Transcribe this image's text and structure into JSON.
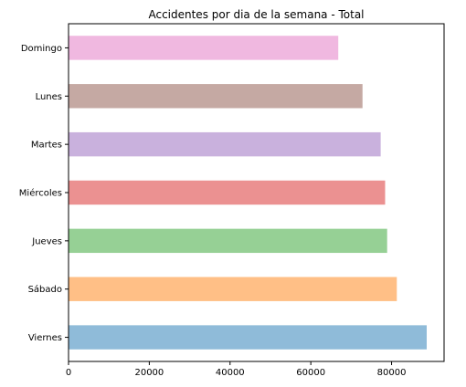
{
  "chart_data": {
    "type": "bar",
    "orientation": "horizontal",
    "title": "Accidentes por dia de la semana - Total",
    "xlabel": "",
    "ylabel": "",
    "categories": [
      "Domingo",
      "Lunes",
      "Martes",
      "Miércoles",
      "Jueves",
      "Sábado",
      "Viernes"
    ],
    "values": [
      66800,
      72800,
      77300,
      78400,
      78900,
      81300,
      88700
    ],
    "colors": [
      "#f0b8e0",
      "#c5a9a3",
      "#c9b1dd",
      "#eb9191",
      "#96d095",
      "#ffbf86",
      "#8fbbd9"
    ],
    "xlim": [
      0,
      93000
    ],
    "xticks": [
      0,
      20000,
      40000,
      60000,
      80000
    ],
    "xtick_labels": [
      "0",
      "20000",
      "40000",
      "60000",
      "80000"
    ],
    "grid": false,
    "legend": "none"
  }
}
